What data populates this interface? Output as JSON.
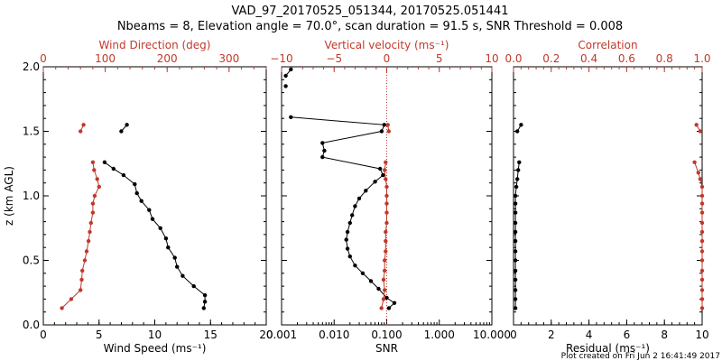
{
  "page": {
    "title_line1": "VAD_97_20170525_051344, 20170525.051441",
    "title_line2": "Nbeams = 8, Elevation angle = 70.0°, scan duration = 91.5 s, SNR Threshold = 0.008",
    "footer": "Plot created on Fri Jun  2 16:41:49 2017"
  },
  "colors": {
    "black": "#000000",
    "red": "#c0392b"
  },
  "chart_data": [
    {
      "type": "line",
      "panel": "wind",
      "ylabel": "z (km AGL)",
      "ylim": [
        0,
        2.0
      ],
      "yticks": [
        0.0,
        0.5,
        1.0,
        1.5,
        2.0
      ],
      "ytick_labels": [
        "0.0",
        "0.5",
        "1.0",
        "1.5",
        "2.0"
      ],
      "xlabel_bottom": "Wind Speed (ms⁻¹)",
      "xlim_bottom": [
        0,
        20
      ],
      "xticks_bottom": [
        0,
        5,
        10,
        15,
        20
      ],
      "xtick_labels_bottom": [
        "0",
        "5",
        "10",
        "15",
        "20"
      ],
      "xlabel_top": "Wind Direction (deg)",
      "xlim_top": [
        0,
        360
      ],
      "xticks_top": [
        0,
        100,
        200,
        300
      ],
      "xtick_labels_top": [
        "0",
        "100",
        "200",
        "300"
      ],
      "series": [
        {
          "axis": "bottom",
          "color": "#000000",
          "segments": [
            [
              [
                14.4,
                0.13
              ],
              [
                14.5,
                0.18
              ],
              [
                14.5,
                0.23
              ],
              [
                13.5,
                0.3
              ],
              [
                12.5,
                0.38
              ],
              [
                12.0,
                0.45
              ],
              [
                11.8,
                0.52
              ],
              [
                11.2,
                0.6
              ],
              [
                11.0,
                0.67
              ],
              [
                10.5,
                0.75
              ],
              [
                9.8,
                0.82
              ],
              [
                9.5,
                0.89
              ],
              [
                8.8,
                0.96
              ],
              [
                8.4,
                1.02
              ],
              [
                8.2,
                1.09
              ],
              [
                7.2,
                1.16
              ],
              [
                6.3,
                1.21
              ],
              [
                5.5,
                1.26
              ]
            ],
            [
              [
                7.0,
                1.5
              ],
              [
                7.5,
                1.55
              ]
            ]
          ]
        },
        {
          "axis": "top",
          "color": "#c0392b",
          "segments": [
            [
              [
                30,
                0.13
              ],
              [
                45,
                0.2
              ],
              [
                60,
                0.27
              ],
              [
                62,
                0.35
              ],
              [
                63,
                0.42
              ],
              [
                67,
                0.5
              ],
              [
                70,
                0.57
              ],
              [
                73,
                0.65
              ],
              [
                75,
                0.72
              ],
              [
                77,
                0.79
              ],
              [
                80,
                0.87
              ],
              [
                80,
                0.94
              ],
              [
                83,
                1.0
              ],
              [
                90,
                1.07
              ],
              [
                87,
                1.13
              ],
              [
                82,
                1.2
              ],
              [
                80,
                1.26
              ]
            ],
            [
              [
                60,
                1.5
              ],
              [
                65,
                1.55
              ]
            ]
          ]
        }
      ]
    },
    {
      "type": "line",
      "panel": "snr",
      "xscale": "log",
      "xlabel_bottom": "SNR",
      "xlim_bottom": [
        0.001,
        10.0
      ],
      "xticks_bottom": [
        0.001,
        0.01,
        0.1,
        1.0,
        10.0
      ],
      "xtick_labels_bottom": [
        "0.001",
        "0.010",
        "0.100",
        "1.000",
        "10.000"
      ],
      "xlabel_top": "Vertical velocity (ms⁻¹)",
      "xlim_top": [
        -10,
        10
      ],
      "xticks_top": [
        -10,
        -5,
        0,
        5,
        10
      ],
      "xtick_labels_top": [
        "−10",
        "−5",
        "0",
        "5",
        "10"
      ],
      "reference_line_top_x": 0,
      "series": [
        {
          "axis": "bottom",
          "color": "#000000",
          "segments": [
            [
              [
                0.11,
                0.13
              ],
              [
                0.14,
                0.17
              ],
              [
                0.1,
                0.21
              ],
              [
                0.07,
                0.28
              ],
              [
                0.05,
                0.34
              ],
              [
                0.035,
                0.4
              ],
              [
                0.025,
                0.46
              ],
              [
                0.02,
                0.53
              ],
              [
                0.018,
                0.59
              ],
              [
                0.017,
                0.66
              ],
              [
                0.018,
                0.72
              ],
              [
                0.02,
                0.79
              ],
              [
                0.022,
                0.85
              ],
              [
                0.025,
                0.92
              ],
              [
                0.03,
                0.98
              ],
              [
                0.04,
                1.04
              ],
              [
                0.06,
                1.11
              ],
              [
                0.085,
                1.16
              ],
              [
                0.075,
                1.21
              ],
              [
                0.006,
                1.3
              ],
              [
                0.0065,
                1.35
              ],
              [
                0.006,
                1.41
              ],
              [
                0.08,
                1.5
              ],
              [
                0.09,
                1.55
              ],
              [
                0.0015,
                1.61
              ]
            ],
            [
              [
                0.0012,
                1.85
              ]
            ],
            [
              [
                0.0012,
                1.93
              ],
              [
                0.0015,
                1.98
              ]
            ]
          ]
        },
        {
          "axis": "top",
          "color": "#c0392b",
          "segments": [
            [
              [
                -0.5,
                0.13
              ],
              [
                -0.3,
                0.2
              ],
              [
                -0.2,
                0.27
              ],
              [
                -0.3,
                0.35
              ],
              [
                -0.2,
                0.42
              ],
              [
                -0.2,
                0.5
              ],
              [
                -0.1,
                0.57
              ],
              [
                -0.1,
                0.65
              ],
              [
                -0.1,
                0.72
              ],
              [
                0,
                0.79
              ],
              [
                0,
                0.87
              ],
              [
                0,
                0.94
              ],
              [
                0,
                1.0
              ],
              [
                0,
                1.07
              ],
              [
                -0.1,
                1.13
              ],
              [
                -0.2,
                1.2
              ],
              [
                -0.1,
                1.26
              ]
            ],
            [
              [
                0.2,
                1.5
              ],
              [
                0.1,
                1.55
              ]
            ]
          ]
        }
      ]
    },
    {
      "type": "line",
      "panel": "residual",
      "xlabel_bottom": "Residual (ms⁻¹)",
      "xlim_bottom": [
        0,
        10
      ],
      "xticks_bottom": [
        0,
        2,
        4,
        6,
        8,
        10
      ],
      "xtick_labels_bottom": [
        "0",
        "2",
        "4",
        "6",
        "8",
        "10"
      ],
      "xlabel_top": "Correlation",
      "xlim_top": [
        0,
        1.0
      ],
      "xticks_top": [
        0,
        0.2,
        0.4,
        0.6,
        0.8,
        1.0
      ],
      "xtick_labels_top": [
        "0.0",
        "0.2",
        "0.4",
        "0.6",
        "0.8",
        "1.0"
      ],
      "series": [
        {
          "axis": "bottom",
          "color": "#000000",
          "segments": [
            [
              [
                0.1,
                0.13
              ],
              [
                0.1,
                0.2
              ],
              [
                0.1,
                0.27
              ],
              [
                0.1,
                0.35
              ],
              [
                0.1,
                0.42
              ],
              [
                0.1,
                0.5
              ],
              [
                0.1,
                0.57
              ],
              [
                0.1,
                0.65
              ],
              [
                0.1,
                0.72
              ],
              [
                0.1,
                0.79
              ],
              [
                0.1,
                0.87
              ],
              [
                0.1,
                0.94
              ],
              [
                0.1,
                1.0
              ],
              [
                0.15,
                1.07
              ],
              [
                0.2,
                1.13
              ],
              [
                0.25,
                1.2
              ],
              [
                0.3,
                1.26
              ]
            ],
            [
              [
                0.2,
                1.5
              ],
              [
                0.4,
                1.55
              ]
            ]
          ]
        },
        {
          "axis": "top",
          "color": "#c0392b",
          "segments": [
            [
              [
                1.0,
                0.13
              ],
              [
                1.0,
                0.2
              ],
              [
                1.0,
                0.27
              ],
              [
                1.0,
                0.35
              ],
              [
                1.0,
                0.42
              ],
              [
                1.0,
                0.5
              ],
              [
                1.0,
                0.57
              ],
              [
                1.0,
                0.65
              ],
              [
                1.0,
                0.72
              ],
              [
                1.0,
                0.79
              ],
              [
                1.0,
                0.87
              ],
              [
                1.0,
                0.94
              ],
              [
                1.0,
                1.0
              ],
              [
                1.0,
                1.07
              ],
              [
                0.99,
                1.13
              ],
              [
                0.98,
                1.18
              ],
              [
                0.96,
                1.26
              ]
            ],
            [
              [
                0.99,
                1.5
              ],
              [
                0.97,
                1.55
              ]
            ]
          ]
        }
      ]
    }
  ]
}
